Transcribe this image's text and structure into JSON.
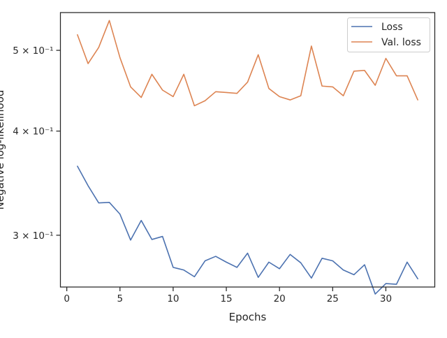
{
  "chart_data": {
    "type": "line",
    "title": "",
    "xlabel": "Epochs",
    "ylabel": "Negative log-likelihood",
    "x_scale": "linear",
    "y_scale": "log",
    "xlim": [
      -0.6,
      34.6
    ],
    "ylim": [
      0.26,
      0.555
    ],
    "grid": false,
    "legend_position": "top-right",
    "x_ticks": [
      0,
      5,
      10,
      15,
      20,
      25,
      30
    ],
    "x_tick_labels": [
      "0",
      "5",
      "10",
      "15",
      "20",
      "25",
      "30"
    ],
    "y_ticks": [
      0.3,
      0.4,
      0.5
    ],
    "y_tick_labels": [
      "3 × 10⁻¹",
      "4 × 10⁻¹",
      "5 × 10⁻¹"
    ],
    "x": [
      1,
      2,
      3,
      4,
      5,
      6,
      7,
      8,
      9,
      10,
      11,
      12,
      13,
      14,
      15,
      16,
      17,
      18,
      19,
      20,
      21,
      22,
      23,
      24,
      25,
      26,
      27,
      28,
      29,
      30,
      31,
      32,
      33
    ],
    "series": [
      {
        "name": "Loss",
        "color": "#4c72b0",
        "values": [
          0.363,
          0.344,
          0.328,
          0.3285,
          0.318,
          0.296,
          0.3125,
          0.2965,
          0.299,
          0.2745,
          0.2725,
          0.2675,
          0.2795,
          0.283,
          0.2785,
          0.2745,
          0.2855,
          0.267,
          0.2785,
          0.2735,
          0.2845,
          0.278,
          0.2665,
          0.2815,
          0.2795,
          0.2725,
          0.269,
          0.2765,
          0.255,
          0.2625,
          0.262,
          0.2785,
          0.266
        ]
      },
      {
        "name": "Val. loss",
        "color": "#dd8452",
        "values": [
          0.522,
          0.482,
          0.504,
          0.543,
          0.49,
          0.452,
          0.439,
          0.468,
          0.448,
          0.44,
          0.468,
          0.429,
          0.435,
          0.446,
          0.445,
          0.444,
          0.458,
          0.494,
          0.45,
          0.44,
          0.436,
          0.441,
          0.506,
          0.453,
          0.452,
          0.441,
          0.472,
          0.473,
          0.454,
          0.489,
          0.466,
          0.466,
          0.436
        ]
      }
    ]
  }
}
